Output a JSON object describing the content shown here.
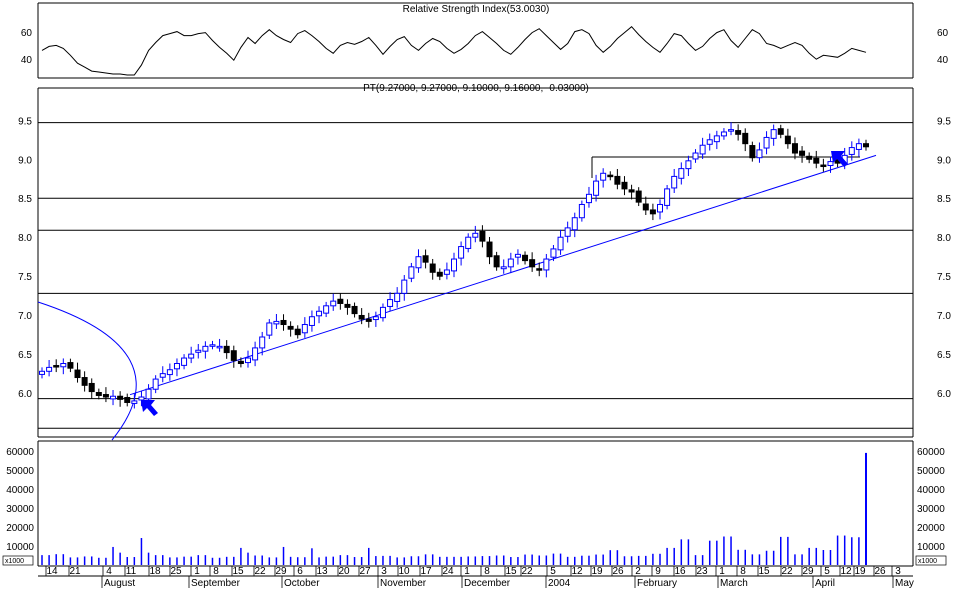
{
  "rsi_panel": {
    "title": "Relative Strength Index(53.0030)",
    "ticks": [
      60,
      40
    ],
    "range": [
      30,
      100
    ],
    "values": [
      55,
      59,
      60,
      57,
      50,
      42,
      38,
      34,
      33,
      32,
      31,
      31,
      30,
      30,
      40,
      55,
      63,
      70,
      72,
      74,
      70,
      70,
      72,
      73,
      65,
      58,
      52,
      45,
      58,
      68,
      62,
      70,
      76,
      70,
      66,
      63,
      72,
      75,
      70,
      64,
      57,
      52,
      60,
      63,
      61,
      64,
      68,
      60,
      51,
      59,
      66,
      69,
      60,
      55,
      62,
      67,
      64,
      57,
      52,
      56,
      62,
      70,
      74,
      68,
      62,
      55,
      51,
      58,
      66,
      73,
      77,
      70,
      63,
      56,
      62,
      74,
      76,
      72,
      60,
      53,
      59,
      67,
      73,
      79,
      71,
      64,
      58,
      53,
      62,
      72,
      70,
      62,
      55,
      59,
      67,
      73,
      76,
      65,
      58,
      67,
      76,
      72,
      62,
      60,
      57,
      60,
      63,
      60,
      52,
      46,
      50,
      49,
      48,
      52,
      57,
      55,
      53
    ]
  },
  "price_panel": {
    "title": "PT(9.27000, 9.27000, 9.10000, 9.16000, -0.03000)",
    "ticks": [
      "9.5",
      "9.0",
      "8.5",
      "8.0",
      "7.5",
      "7.0",
      "6.5",
      "6.0"
    ],
    "range": [
      5.45,
      9.85
    ],
    "horizontal_lines": [
      9.47,
      8.5,
      8.09,
      7.28,
      5.93,
      5.55
    ],
    "close": [
      6.28,
      6.33,
      6.35,
      6.38,
      6.32,
      6.2,
      6.1,
      6.02,
      5.97,
      5.95,
      5.96,
      5.92,
      5.88,
      5.9,
      5.95,
      6.05,
      6.18,
      6.25,
      6.3,
      6.38,
      6.45,
      6.5,
      6.55,
      6.6,
      6.62,
      6.6,
      6.52,
      6.42,
      6.38,
      6.45,
      6.58,
      6.72,
      6.9,
      6.92,
      6.88,
      6.82,
      6.75,
      6.88,
      6.98,
      7.05,
      7.12,
      7.18,
      7.15,
      7.1,
      7.02,
      6.95,
      6.92,
      6.98,
      7.1,
      7.2,
      7.28,
      7.45,
      7.62,
      7.75,
      7.68,
      7.55,
      7.5,
      7.58,
      7.72,
      7.88,
      8.0,
      8.05,
      7.95,
      7.75,
      7.62,
      7.62,
      7.72,
      7.78,
      7.7,
      7.62,
      7.58,
      7.72,
      7.85,
      8.0,
      8.12,
      8.25,
      8.42,
      8.55,
      8.72,
      8.82,
      8.78,
      8.68,
      8.62,
      8.58,
      8.45,
      8.35,
      8.3,
      8.42,
      8.62,
      8.78,
      8.88,
      8.98,
      9.08,
      9.18,
      9.25,
      9.3,
      9.35,
      9.38,
      9.32,
      9.2,
      9.02,
      9.12,
      9.28,
      9.38,
      9.32,
      9.2,
      9.08,
      9.05,
      9.0,
      8.95,
      8.92,
      8.97,
      8.95,
      9.05,
      9.15,
      9.2,
      9.16
    ]
  },
  "volume_panel": {
    "unit": "x1000",
    "ticks": [
      "60000",
      "50000",
      "40000",
      "30000",
      "20000",
      "10000"
    ],
    "max": 60000,
    "values": [
      5200,
      5200,
      5700,
      5700,
      4000,
      4000,
      4500,
      4500,
      3800,
      3800,
      9500,
      6500,
      4200,
      4200,
      14200,
      6500,
      5200,
      5200,
      4000,
      4000,
      4400,
      4400,
      5200,
      5200,
      3800,
      3800,
      4300,
      4300,
      9000,
      6500,
      5000,
      5000,
      4000,
      4000,
      9500,
      4300,
      4100,
      4100,
      8800,
      4000,
      4400,
      4400,
      5200,
      5200,
      4200,
      4200,
      9000,
      4700,
      4800,
      4800,
      4000,
      4000,
      4600,
      4600,
      5600,
      5600,
      4300,
      4300,
      4300,
      4300,
      4500,
      4500,
      4700,
      4700,
      5000,
      5000,
      4200,
      4200,
      5500,
      5500,
      5000,
      5000,
      6000,
      6000,
      4300,
      4300,
      4900,
      4900,
      5500,
      5500,
      7800,
      7800,
      4600,
      4600,
      4800,
      4800,
      5900,
      5900,
      9000,
      9000,
      13500,
      13500,
      5200,
      5200,
      12800,
      12800,
      15000,
      15000,
      8000,
      8000,
      5600,
      5600,
      7500,
      7500,
      14800,
      14800,
      5600,
      5600,
      9000,
      9000,
      7900,
      7900,
      15500,
      15500,
      14600,
      14600,
      59000
    ]
  },
  "x_axis": {
    "day_labels": [
      "14",
      "21",
      "4",
      "11",
      "18",
      "25",
      "1",
      "8",
      "15",
      "22",
      "29",
      "6",
      "13",
      "20",
      "27",
      "3",
      "10",
      "17",
      "24",
      "1",
      "8",
      "15",
      "22",
      "5",
      "12",
      "19",
      "26",
      "2",
      "9",
      "16",
      "23",
      "1",
      "8",
      "15",
      "22",
      "29",
      "5",
      "12",
      "19",
      "26",
      "3"
    ],
    "month_labels": [
      "August",
      "September",
      "October",
      "November",
      "December",
      "2004",
      "February",
      "March",
      "April",
      "May"
    ]
  },
  "chart_data": {
    "type": "candlestick",
    "title": "PT(9.27000, 9.27000, 9.10000, 9.16000, -0.03000)",
    "period": "July 2003 – April 2004 (daily)",
    "price_range": [
      5.45,
      9.85
    ],
    "last_bar": {
      "open": 9.27,
      "high": 9.27,
      "low": 9.1,
      "close": 9.16,
      "change": -0.03
    },
    "trendline": {
      "from": {
        "date": "2003-08-15",
        "price": 5.98
      },
      "to": {
        "date": "2004-04-28",
        "price": 9.05
      }
    },
    "horizontal_lines": [
      9.47,
      8.5,
      8.09,
      7.28,
      5.93,
      5.55
    ],
    "rsi_label": "Relative Strength Index(53.0030)",
    "volume_unit": "x1000",
    "volume_ticks": [
      10000,
      20000,
      30000,
      40000,
      50000,
      60000
    ],
    "grid": false
  },
  "colors": {
    "up_candle": "#0000ff",
    "down_candle": "#000000",
    "trendline": "#0000ff",
    "arrow": "#0000ff",
    "volume": "#0000ff"
  }
}
